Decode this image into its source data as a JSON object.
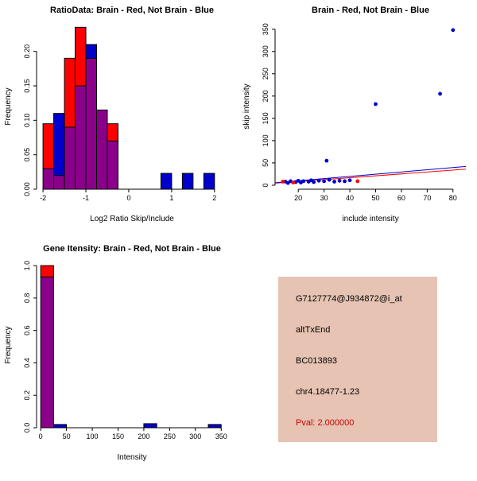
{
  "colors": {
    "brain": "#ff0000",
    "not_brain": "#0000cd",
    "overlap": "#8b008b",
    "axis": "#000000"
  },
  "info": {
    "box_color": "#e6c3b3",
    "pval_color": "#cc0000",
    "lines": [
      "G7127774@J934872@i_at",
      "altTxEnd",
      "BC013893",
      "chr4.18477-1.23",
      "Pval: 2.000000"
    ]
  },
  "chart_data": [
    {
      "name": "ratio-histogram",
      "type": "histogram",
      "title": "RatioData: Brain - Red, Not Brain - Blue",
      "xlabel": "Log2 Ratio Skip/Include",
      "ylabel": "Frequency",
      "xlim": [
        -2.15,
        2.3
      ],
      "ylim": [
        0,
        0.24
      ],
      "xticks": [
        -2,
        -1,
        0,
        1,
        2
      ],
      "xtick_labels": [
        "-2",
        "-1",
        "0",
        "1",
        "2"
      ],
      "yticks": [
        0,
        0.05,
        0.1,
        0.15,
        0.2
      ],
      "ytick_labels": [
        "0.00",
        "0.05",
        "0.10",
        "0.15",
        "0.20"
      ],
      "bin_start": -2,
      "bin_width": 0.25,
      "series": [
        {
          "name": "Brain",
          "color": "#ff0000",
          "values": [
            0.095,
            0.02,
            0.19,
            0.235,
            0.19,
            0.115,
            0.095,
            0,
            0,
            0,
            0,
            0,
            0,
            0,
            0,
            0
          ]
        },
        {
          "name": "Not Brain",
          "color": "#0000cd",
          "values": [
            0.03,
            0.11,
            0.09,
            0.15,
            0.21,
            0.115,
            0.07,
            0,
            0,
            0,
            0,
            0.023,
            0,
            0.023,
            0,
            0.023
          ]
        }
      ],
      "legend": "grid off, overlap shown purple"
    },
    {
      "name": "intensity-scatter",
      "type": "scatter",
      "title": "Brain - Red, Not Brain - Blue",
      "xlabel": "include intensity",
      "ylabel": "skip intensity",
      "xlim": [
        11,
        85
      ],
      "ylim": [
        -9,
        362
      ],
      "xticks": [
        20,
        30,
        40,
        50,
        60,
        70,
        80
      ],
      "yticks": [
        0,
        50,
        100,
        150,
        200,
        250,
        300,
        350
      ],
      "series": [
        {
          "name": "Not Brain",
          "color": "#0000cd",
          "points": [
            [
              15,
              8
            ],
            [
              16,
              5
            ],
            [
              17,
              9
            ],
            [
              19,
              7
            ],
            [
              20,
              10
            ],
            [
              21,
              6
            ],
            [
              22,
              9
            ],
            [
              24,
              8
            ],
            [
              25,
              11
            ],
            [
              26,
              7
            ],
            [
              28,
              10
            ],
            [
              30,
              9
            ],
            [
              31,
              55
            ],
            [
              32,
              12
            ],
            [
              34,
              8
            ],
            [
              36,
              10
            ],
            [
              38,
              9
            ],
            [
              40,
              11
            ],
            [
              50,
              182
            ],
            [
              75,
              205
            ],
            [
              80,
              348
            ]
          ]
        },
        {
          "name": "Brain",
          "color": "#ff0000",
          "points": [
            [
              14,
              8
            ],
            [
              18,
              6
            ],
            [
              43,
              9
            ]
          ]
        }
      ],
      "lines": [
        {
          "name": "brain-fit",
          "color": "#ff0000",
          "x": [
            11,
            85
          ],
          "y": [
            4.5,
            36
          ]
        },
        {
          "name": "not-brain-fit",
          "color": "#0000cd",
          "x": [
            11,
            85
          ],
          "y": [
            5.5,
            42
          ]
        }
      ]
    },
    {
      "name": "gene-intensity-histogram",
      "type": "histogram",
      "title": "Gene Itensity: Brain - Red, Not Brain - Blue",
      "xlabel": "Intensity",
      "ylabel": "Frequency",
      "xlim": [
        -8,
        362
      ],
      "ylim": [
        0,
        1.02
      ],
      "xticks": [
        0,
        50,
        100,
        150,
        200,
        250,
        300,
        350
      ],
      "xtick_labels": [
        "0",
        "50",
        "100",
        "150",
        "200",
        "250",
        "300",
        "350"
      ],
      "yticks": [
        0,
        0.2,
        0.4,
        0.6,
        0.8,
        1.0
      ],
      "ytick_labels": [
        "0.0",
        "0.2",
        "0.4",
        "0.6",
        "0.8",
        "1.0"
      ],
      "bin_start": 0,
      "bin_width": 25,
      "series": [
        {
          "name": "Brain",
          "color": "#ff0000",
          "values": [
            1.0,
            0,
            0,
            0,
            0,
            0,
            0,
            0,
            0,
            0,
            0,
            0,
            0,
            0
          ]
        },
        {
          "name": "Not Brain",
          "color": "#0000cd",
          "values": [
            0.93,
            0.02,
            0,
            0,
            0,
            0,
            0,
            0,
            0.025,
            0,
            0,
            0,
            0,
            0.02
          ]
        }
      ]
    }
  ]
}
